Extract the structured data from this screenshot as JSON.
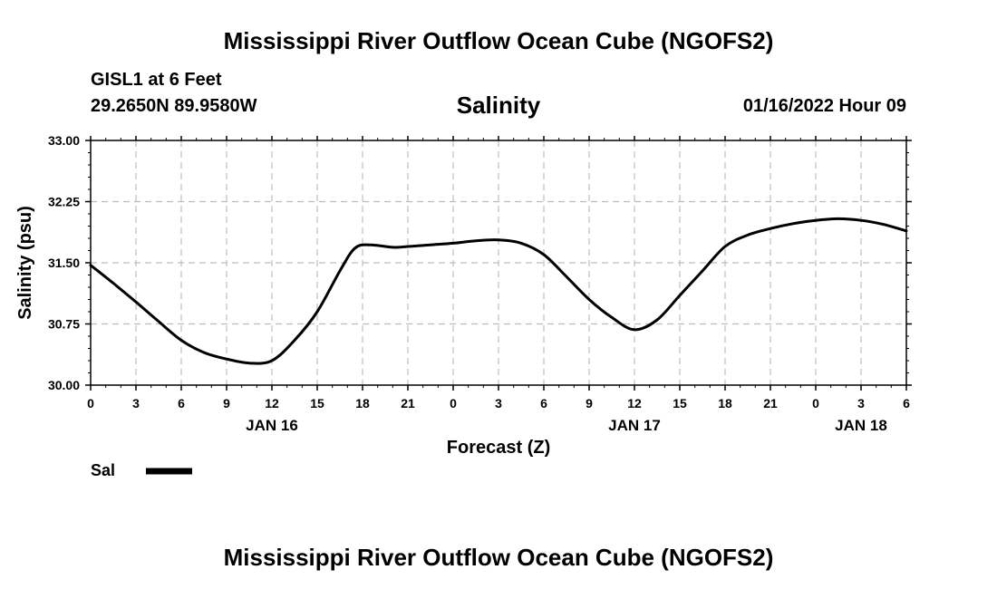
{
  "header": {
    "title": "Mississippi River Outflow Ocean Cube (NGOFS2)",
    "title_repeat": "Mississippi River Outflow Ocean Cube (NGOFS2)",
    "station_name": "GISL1 at 6 Feet",
    "station_coords": "29.2650N  89.9580W",
    "run_time": "01/16/2022 Hour 09"
  },
  "colors": {
    "line": "#000000",
    "grid": "#bdbdbd",
    "axis": "#000000"
  },
  "chart_data": {
    "type": "line",
    "title": "Salinity",
    "xlabel": "Forecast (Z)",
    "ylabel": "Salinity (psu)",
    "xlim": [
      0,
      54
    ],
    "ylim": [
      30.0,
      33.0
    ],
    "grid": true,
    "legend_position": "bottom-left",
    "x_ticks": [
      0,
      3,
      6,
      9,
      12,
      15,
      18,
      21,
      24,
      27,
      30,
      33,
      36,
      39,
      42,
      45,
      48,
      51,
      54
    ],
    "x_tick_labels": [
      "0",
      "3",
      "6",
      "9",
      "12",
      "15",
      "18",
      "21",
      "0",
      "3",
      "6",
      "9",
      "12",
      "15",
      "18",
      "21",
      "0",
      "3",
      "6"
    ],
    "y_ticks": [
      30.0,
      30.75,
      31.5,
      32.25,
      33.0
    ],
    "y_tick_labels": [
      "30.00",
      "30.75",
      "31.50",
      "32.25",
      "33.00"
    ],
    "day_labels": [
      {
        "x": 12,
        "label": "JAN 16"
      },
      {
        "x": 36,
        "label": "JAN 17"
      },
      {
        "x": 51,
        "label": "JAN 18"
      }
    ],
    "series": [
      {
        "name": "Sal",
        "x": [
          0,
          1.5,
          3,
          4.5,
          6,
          7.5,
          9,
          10.5,
          12,
          13.5,
          15,
          16.5,
          17.5,
          18.5,
          20,
          21,
          22.5,
          24,
          25.5,
          27,
          28.5,
          30,
          31.5,
          33,
          34.5,
          36,
          37.5,
          39,
          40.5,
          42,
          43.5,
          45,
          46.5,
          48,
          49.5,
          51,
          52.5,
          54
        ],
        "values": [
          31.47,
          31.25,
          31.02,
          30.78,
          30.55,
          30.4,
          30.32,
          30.27,
          30.3,
          30.55,
          30.9,
          31.4,
          31.68,
          31.72,
          31.69,
          31.7,
          31.72,
          31.74,
          31.77,
          31.78,
          31.74,
          31.6,
          31.33,
          31.05,
          30.83,
          30.68,
          30.8,
          31.1,
          31.4,
          31.7,
          31.84,
          31.92,
          31.98,
          32.02,
          32.04,
          32.02,
          31.97,
          31.89
        ]
      }
    ]
  }
}
